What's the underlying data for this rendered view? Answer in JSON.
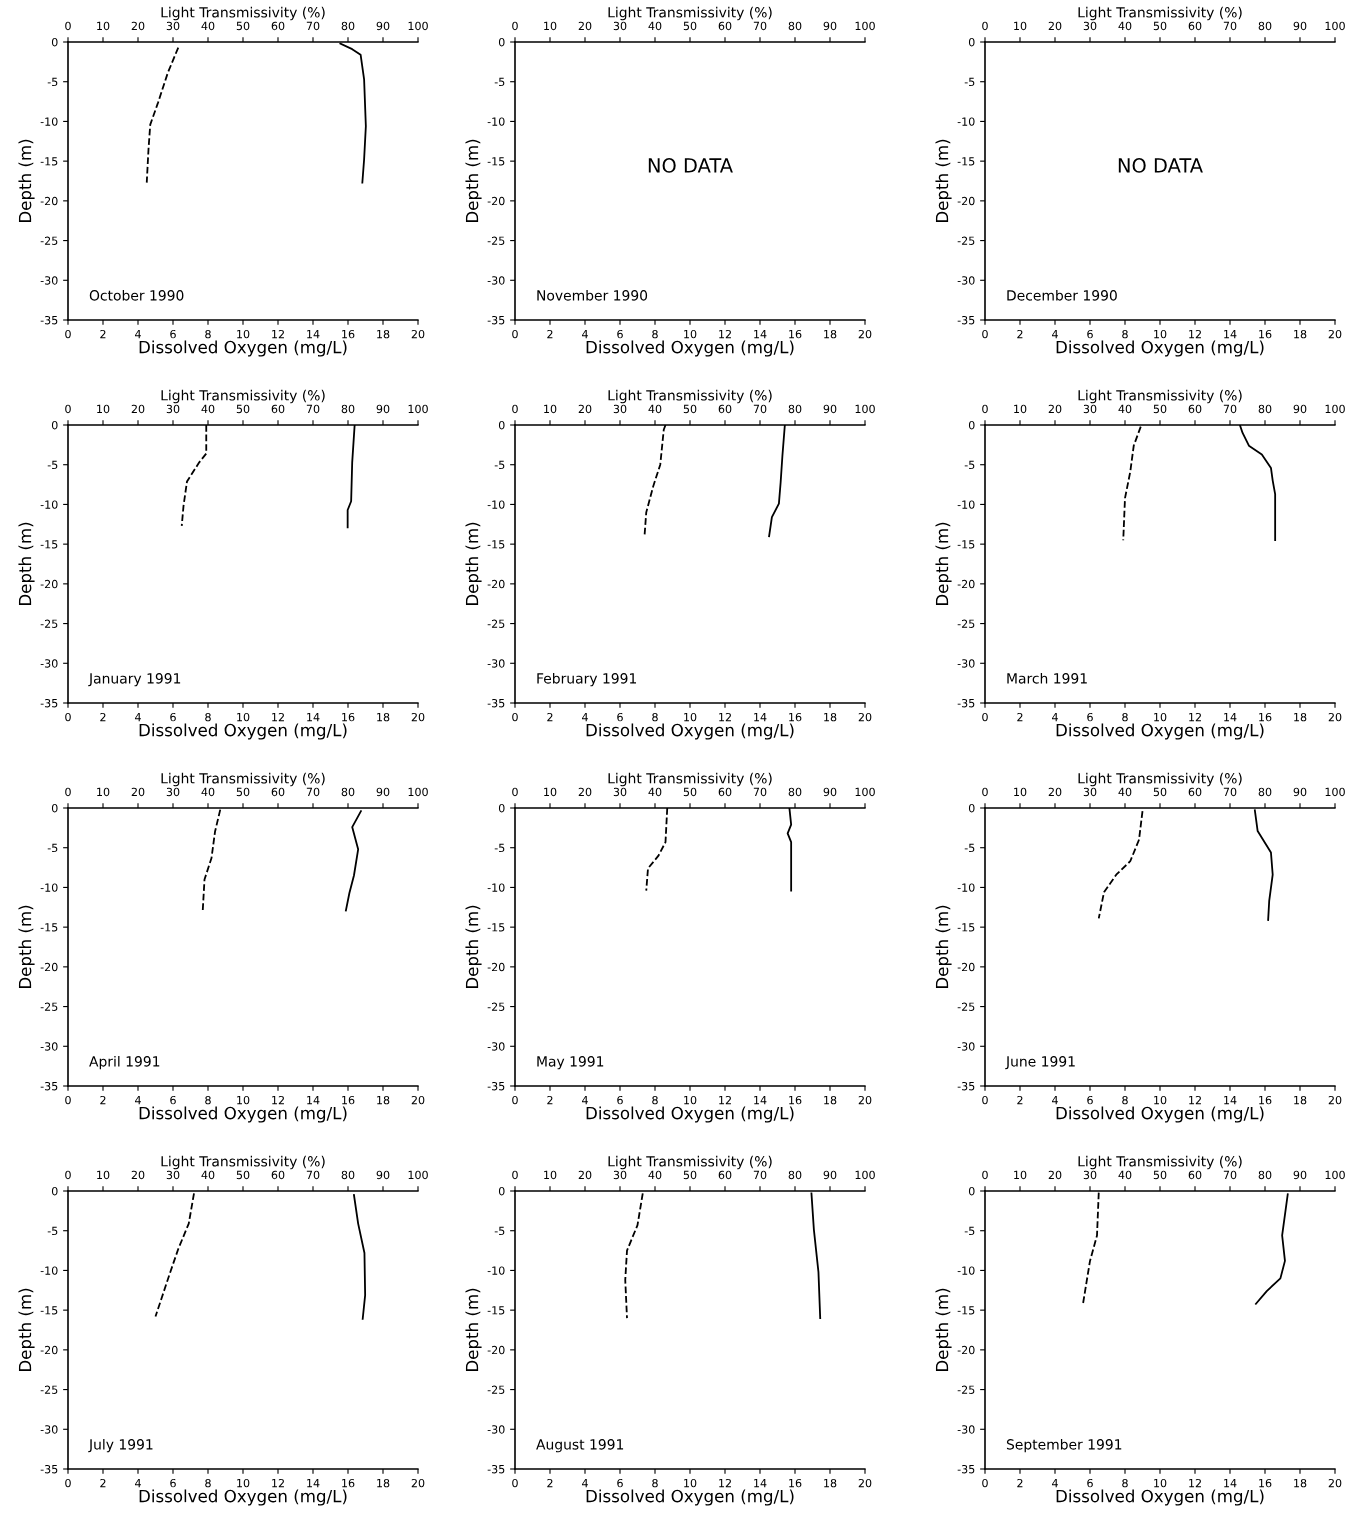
{
  "chart_data": [
    {
      "type": "line",
      "title": "October 1990",
      "xlabel": "Dissolved Oxygen (mg/L)",
      "x2label": "Light Transmissivity (%)",
      "ylabel": "Depth (m)",
      "xlim": [
        0,
        20
      ],
      "xticks": [
        0,
        2,
        4,
        6,
        8,
        10,
        12,
        14,
        16,
        18,
        20
      ],
      "x2lim": [
        0,
        100
      ],
      "x2ticks": [
        0,
        10,
        20,
        30,
        40,
        50,
        60,
        70,
        80,
        90,
        100
      ],
      "ylim": [
        -35,
        0
      ],
      "yticks": [
        0,
        -5,
        -10,
        -15,
        -20,
        -25,
        -30,
        -35
      ],
      "series": [
        {
          "color": "#000000",
          "line_style": "dashed",
          "x": [
            6.3,
            5.7,
            5.15,
            4.7,
            4.6,
            4.5
          ],
          "values": [
            -0.7,
            -3.9,
            -7.6,
            -10.4,
            -13.5,
            -17.7
          ]
        },
        {
          "color": "#000000",
          "line_style": "solid",
          "axis": "x2",
          "x": [
            77.8,
            81.2,
            83.6,
            84.6,
            85.1,
            84.6,
            84.1
          ],
          "values": [
            -0.2,
            -0.9,
            -1.6,
            -4.7,
            -10.6,
            -14.8,
            -17.7
          ]
        }
      ]
    },
    {
      "type": "line",
      "title": "November 1990",
      "annotations": [
        "NO DATA"
      ],
      "xlabel": "Dissolved Oxygen (mg/L)",
      "x2label": "Light Transmissivity (%)",
      "ylabel": "Depth (m)",
      "xlim": [
        0,
        20
      ],
      "xticks": [
        0,
        2,
        4,
        6,
        8,
        10,
        12,
        14,
        16,
        18,
        20
      ],
      "x2lim": [
        0,
        100
      ],
      "x2ticks": [
        0,
        10,
        20,
        30,
        40,
        50,
        60,
        70,
        80,
        90,
        100
      ],
      "ylim": [
        -35,
        0
      ],
      "yticks": [
        0,
        -5,
        -10,
        -15,
        -20,
        -25,
        -30,
        -35
      ]
    },
    {
      "type": "line",
      "title": "December 1990",
      "annotations": [
        "NO DATA"
      ],
      "xlabel": "Dissolved Oxygen (mg/L)",
      "x2label": "Light Transmissivity (%)",
      "ylabel": "Depth (m)",
      "xlim": [
        0,
        20
      ],
      "xticks": [
        0,
        2,
        4,
        6,
        8,
        10,
        12,
        14,
        16,
        18,
        20
      ],
      "x2lim": [
        0,
        100
      ],
      "x2ticks": [
        0,
        10,
        20,
        30,
        40,
        50,
        60,
        70,
        80,
        90,
        100
      ],
      "ylim": [
        -35,
        0
      ],
      "yticks": [
        0,
        -5,
        -10,
        -15,
        -20,
        -25,
        -30,
        -35
      ]
    },
    {
      "type": "line",
      "title": "January 1991",
      "xlabel": "Dissolved Oxygen (mg/L)",
      "x2label": "Light Transmissivity (%)",
      "ylabel": "Depth (m)",
      "xlim": [
        0,
        20
      ],
      "xticks": [
        0,
        2,
        4,
        6,
        8,
        10,
        12,
        14,
        16,
        18,
        20
      ],
      "x2lim": [
        0,
        100
      ],
      "x2ticks": [
        0,
        10,
        20,
        30,
        40,
        50,
        60,
        70,
        80,
        90,
        100
      ],
      "ylim": [
        -35,
        0
      ],
      "yticks": [
        0,
        -5,
        -10,
        -15,
        -20,
        -25,
        -30,
        -35
      ],
      "series": [
        {
          "color": "#000000",
          "line_style": "dashed",
          "x": [
            7.9,
            7.9,
            7.5,
            6.8,
            6.6,
            6.5
          ],
          "values": [
            0,
            -3.6,
            -4.7,
            -7.1,
            -10.2,
            -12.7
          ]
        },
        {
          "color": "#000000",
          "line_style": "solid",
          "axis": "x2",
          "x": [
            81.9,
            81.2,
            80.9,
            79.9,
            79.9
          ],
          "values": [
            0,
            -4.7,
            -9.6,
            -10.7,
            -12.9
          ]
        }
      ]
    },
    {
      "type": "line",
      "title": "February 1991",
      "xlabel": "Dissolved Oxygen (mg/L)",
      "x2label": "Light Transmissivity (%)",
      "ylabel": "Depth (m)",
      "xlim": [
        0,
        20
      ],
      "xticks": [
        0,
        2,
        4,
        6,
        8,
        10,
        12,
        14,
        16,
        18,
        20
      ],
      "x2lim": [
        0,
        100
      ],
      "x2ticks": [
        0,
        10,
        20,
        30,
        40,
        50,
        60,
        70,
        80,
        90,
        100
      ],
      "ylim": [
        -35,
        0
      ],
      "yticks": [
        0,
        -5,
        -10,
        -15,
        -20,
        -25,
        -30,
        -35
      ],
      "series": [
        {
          "color": "#000000",
          "line_style": "dashed",
          "x": [
            8.6,
            8.5,
            8.3,
            7.9,
            7.5,
            7.4
          ],
          "values": [
            0,
            -0.6,
            -5,
            -7.7,
            -11,
            -14
          ]
        },
        {
          "color": "#000000",
          "line_style": "solid",
          "axis": "x2",
          "x": [
            77.1,
            76.4,
            75.9,
            75.4,
            73.4,
            72.6
          ],
          "values": [
            0,
            -3.9,
            -7.2,
            -9.9,
            -11.6,
            -14
          ]
        }
      ]
    },
    {
      "type": "line",
      "title": "March 1991",
      "xlabel": "Dissolved Oxygen (mg/L)",
      "x2label": "Light Transmissivity (%)",
      "ylabel": "Depth (m)",
      "xlim": [
        0,
        20
      ],
      "xticks": [
        0,
        2,
        4,
        6,
        8,
        10,
        12,
        14,
        16,
        18,
        20
      ],
      "x2lim": [
        0,
        100
      ],
      "x2ticks": [
        0,
        10,
        20,
        30,
        40,
        50,
        60,
        70,
        80,
        90,
        100
      ],
      "ylim": [
        -35,
        0
      ],
      "yticks": [
        0,
        -5,
        -10,
        -15,
        -20,
        -25,
        -30,
        -35
      ],
      "series": [
        {
          "color": "#000000",
          "line_style": "dashed",
          "x": [
            8.9,
            8.5,
            8.3,
            8.0,
            7.9
          ],
          "values": [
            -0.2,
            -2.6,
            -5.9,
            -9.2,
            -14.5
          ]
        },
        {
          "color": "#000000",
          "line_style": "solid",
          "axis": "x2",
          "x": [
            72.9,
            73.6,
            75.4,
            79.1,
            81.7,
            82.2,
            82.9,
            82.9
          ],
          "values": [
            -0.1,
            -1,
            -2.6,
            -3.7,
            -5.4,
            -7,
            -8.7,
            -14.5
          ]
        }
      ]
    },
    {
      "type": "line",
      "title": "April 1991",
      "xlabel": "Dissolved Oxygen (mg/L)",
      "x2label": "Light Transmissivity (%)",
      "ylabel": "Depth (m)",
      "xlim": [
        0,
        20
      ],
      "xticks": [
        0,
        2,
        4,
        6,
        8,
        10,
        12,
        14,
        16,
        18,
        20
      ],
      "x2lim": [
        0,
        100
      ],
      "x2ticks": [
        0,
        10,
        20,
        30,
        40,
        50,
        60,
        70,
        80,
        90,
        100
      ],
      "ylim": [
        -35,
        0
      ],
      "yticks": [
        0,
        -5,
        -10,
        -15,
        -20,
        -25,
        -30,
        -35
      ],
      "series": [
        {
          "color": "#000000",
          "line_style": "dashed",
          "x": [
            8.7,
            8.4,
            8.2,
            7.8,
            7.7
          ],
          "values": [
            -0.2,
            -3,
            -6.3,
            -9,
            -12.9
          ]
        },
        {
          "color": "#000000",
          "line_style": "solid",
          "axis": "x2",
          "x": [
            83.7,
            81.2,
            82.9,
            81.7,
            80.4,
            79.4
          ],
          "values": [
            -0.4,
            -2.4,
            -5.2,
            -8.5,
            -10.7,
            -12.9
          ]
        }
      ]
    },
    {
      "type": "line",
      "title": "May 1991",
      "xlabel": "Dissolved Oxygen (mg/L)",
      "x2label": "Light Transmissivity (%)",
      "ylabel": "Depth (m)",
      "xlim": [
        0,
        20
      ],
      "xticks": [
        0,
        2,
        4,
        6,
        8,
        10,
        12,
        14,
        16,
        18,
        20
      ],
      "x2lim": [
        0,
        100
      ],
      "x2ticks": [
        0,
        10,
        20,
        30,
        40,
        50,
        60,
        70,
        80,
        90,
        100
      ],
      "ylim": [
        -35,
        0
      ],
      "yticks": [
        0,
        -5,
        -10,
        -15,
        -20,
        -25,
        -30,
        -35
      ],
      "series": [
        {
          "color": "#000000",
          "line_style": "dashed",
          "x": [
            8.7,
            8.6,
            8.2,
            7.6,
            7.5
          ],
          "values": [
            0,
            -4.3,
            -6,
            -7.6,
            -10.4
          ]
        },
        {
          "color": "#000000",
          "line_style": "solid",
          "axis": "x2",
          "x": [
            78.4,
            78.9,
            77.9,
            78.9,
            78.9
          ],
          "values": [
            0,
            -2.1,
            -3.2,
            -4.3,
            -10.4
          ]
        }
      ]
    },
    {
      "type": "line",
      "title": "June 1991",
      "xlabel": "Dissolved Oxygen (mg/L)",
      "x2label": "Light Transmissivity (%)",
      "ylabel": "Depth (m)",
      "xlim": [
        0,
        20
      ],
      "xticks": [
        0,
        2,
        4,
        6,
        8,
        10,
        12,
        14,
        16,
        18,
        20
      ],
      "x2lim": [
        0,
        100
      ],
      "x2ticks": [
        0,
        10,
        20,
        30,
        40,
        50,
        60,
        70,
        80,
        90,
        100
      ],
      "ylim": [
        -35,
        0
      ],
      "yticks": [
        0,
        -5,
        -10,
        -15,
        -20,
        -25,
        -30,
        -35
      ],
      "series": [
        {
          "color": "#000000",
          "line_style": "dashed",
          "x": [
            9.0,
            8.8,
            8.3,
            7.5,
            6.8,
            6.5
          ],
          "values": [
            -0.4,
            -4,
            -6.7,
            -8.4,
            -10.6,
            -13.9
          ]
        },
        {
          "color": "#000000",
          "line_style": "solid",
          "axis": "x2",
          "x": [
            77.1,
            77.9,
            81.7,
            82.2,
            81.2,
            80.9
          ],
          "values": [
            -0.3,
            -2.9,
            -5.6,
            -8.4,
            -11.7,
            -14.1
          ]
        }
      ]
    },
    {
      "type": "line",
      "title": "July 1991",
      "xlabel": "Dissolved Oxygen (mg/L)",
      "x2label": "Light Transmissivity (%)",
      "ylabel": "Depth (m)",
      "xlim": [
        0,
        20
      ],
      "xticks": [
        0,
        2,
        4,
        6,
        8,
        10,
        12,
        14,
        16,
        18,
        20
      ],
      "x2lim": [
        0,
        100
      ],
      "x2ticks": [
        0,
        10,
        20,
        30,
        40,
        50,
        60,
        70,
        80,
        90,
        100
      ],
      "ylim": [
        -35,
        0
      ],
      "yticks": [
        0,
        -5,
        -10,
        -15,
        -20,
        -25,
        -30,
        -35
      ],
      "series": [
        {
          "color": "#000000",
          "line_style": "dashed",
          "x": [
            7.2,
            6.9,
            6.3,
            5.8,
            5.0
          ],
          "values": [
            -0.3,
            -4.1,
            -7.3,
            -10.5,
            -15.8
          ]
        },
        {
          "color": "#000000",
          "line_style": "solid",
          "axis": "x2",
          "x": [
            81.7,
            82.9,
            84.7,
            84.9,
            84.2
          ],
          "values": [
            -0.5,
            -4.1,
            -7.8,
            -13.1,
            -16.1
          ]
        }
      ]
    },
    {
      "type": "line",
      "title": "August 1991",
      "xlabel": "Dissolved Oxygen (mg/L)",
      "x2label": "Light Transmissivity (%)",
      "ylabel": "Depth (m)",
      "xlim": [
        0,
        20
      ],
      "xticks": [
        0,
        2,
        4,
        6,
        8,
        10,
        12,
        14,
        16,
        18,
        20
      ],
      "x2lim": [
        0,
        100
      ],
      "x2ticks": [
        0,
        10,
        20,
        30,
        40,
        50,
        60,
        70,
        80,
        90,
        100
      ],
      "ylim": [
        -35,
        0
      ],
      "yticks": [
        0,
        -5,
        -10,
        -15,
        -20,
        -25,
        -30,
        -35
      ],
      "series": [
        {
          "color": "#000000",
          "line_style": "dashed",
          "x": [
            7.3,
            7.0,
            6.4,
            6.3,
            6.4
          ],
          "values": [
            -0.3,
            -4.3,
            -7.5,
            -11.2,
            -16
          ]
        },
        {
          "color": "#000000",
          "line_style": "solid",
          "axis": "x2",
          "x": [
            84.7,
            85.4,
            86.7,
            87.2
          ],
          "values": [
            -0.3,
            -4.9,
            -10.2,
            -16
          ]
        }
      ]
    },
    {
      "type": "line",
      "title": "September 1991",
      "xlabel": "Dissolved Oxygen (mg/L)",
      "x2label": "Light Transmissivity (%)",
      "ylabel": "Depth (m)",
      "xlim": [
        0,
        20
      ],
      "xticks": [
        0,
        2,
        4,
        6,
        8,
        10,
        12,
        14,
        16,
        18,
        20
      ],
      "x2lim": [
        0,
        100
      ],
      "x2ticks": [
        0,
        10,
        20,
        30,
        40,
        50,
        60,
        70,
        80,
        90,
        100
      ],
      "ylim": [
        -35,
        0
      ],
      "yticks": [
        0,
        -5,
        -10,
        -15,
        -20,
        -25,
        -30,
        -35
      ],
      "series": [
        {
          "color": "#000000",
          "line_style": "dashed",
          "x": [
            6.5,
            6.4,
            6.0,
            5.8,
            5.6
          ],
          "values": [
            -0.2,
            -5.6,
            -8.8,
            -11.5,
            -14.2
          ]
        },
        {
          "color": "#000000",
          "line_style": "solid",
          "axis": "x2",
          "x": [
            86.5,
            84.9,
            85.7,
            84.4,
            80.5,
            77.4
          ],
          "values": [
            -0.4,
            -5.6,
            -8.8,
            -11,
            -12.6,
            -14.2
          ]
        }
      ]
    }
  ]
}
